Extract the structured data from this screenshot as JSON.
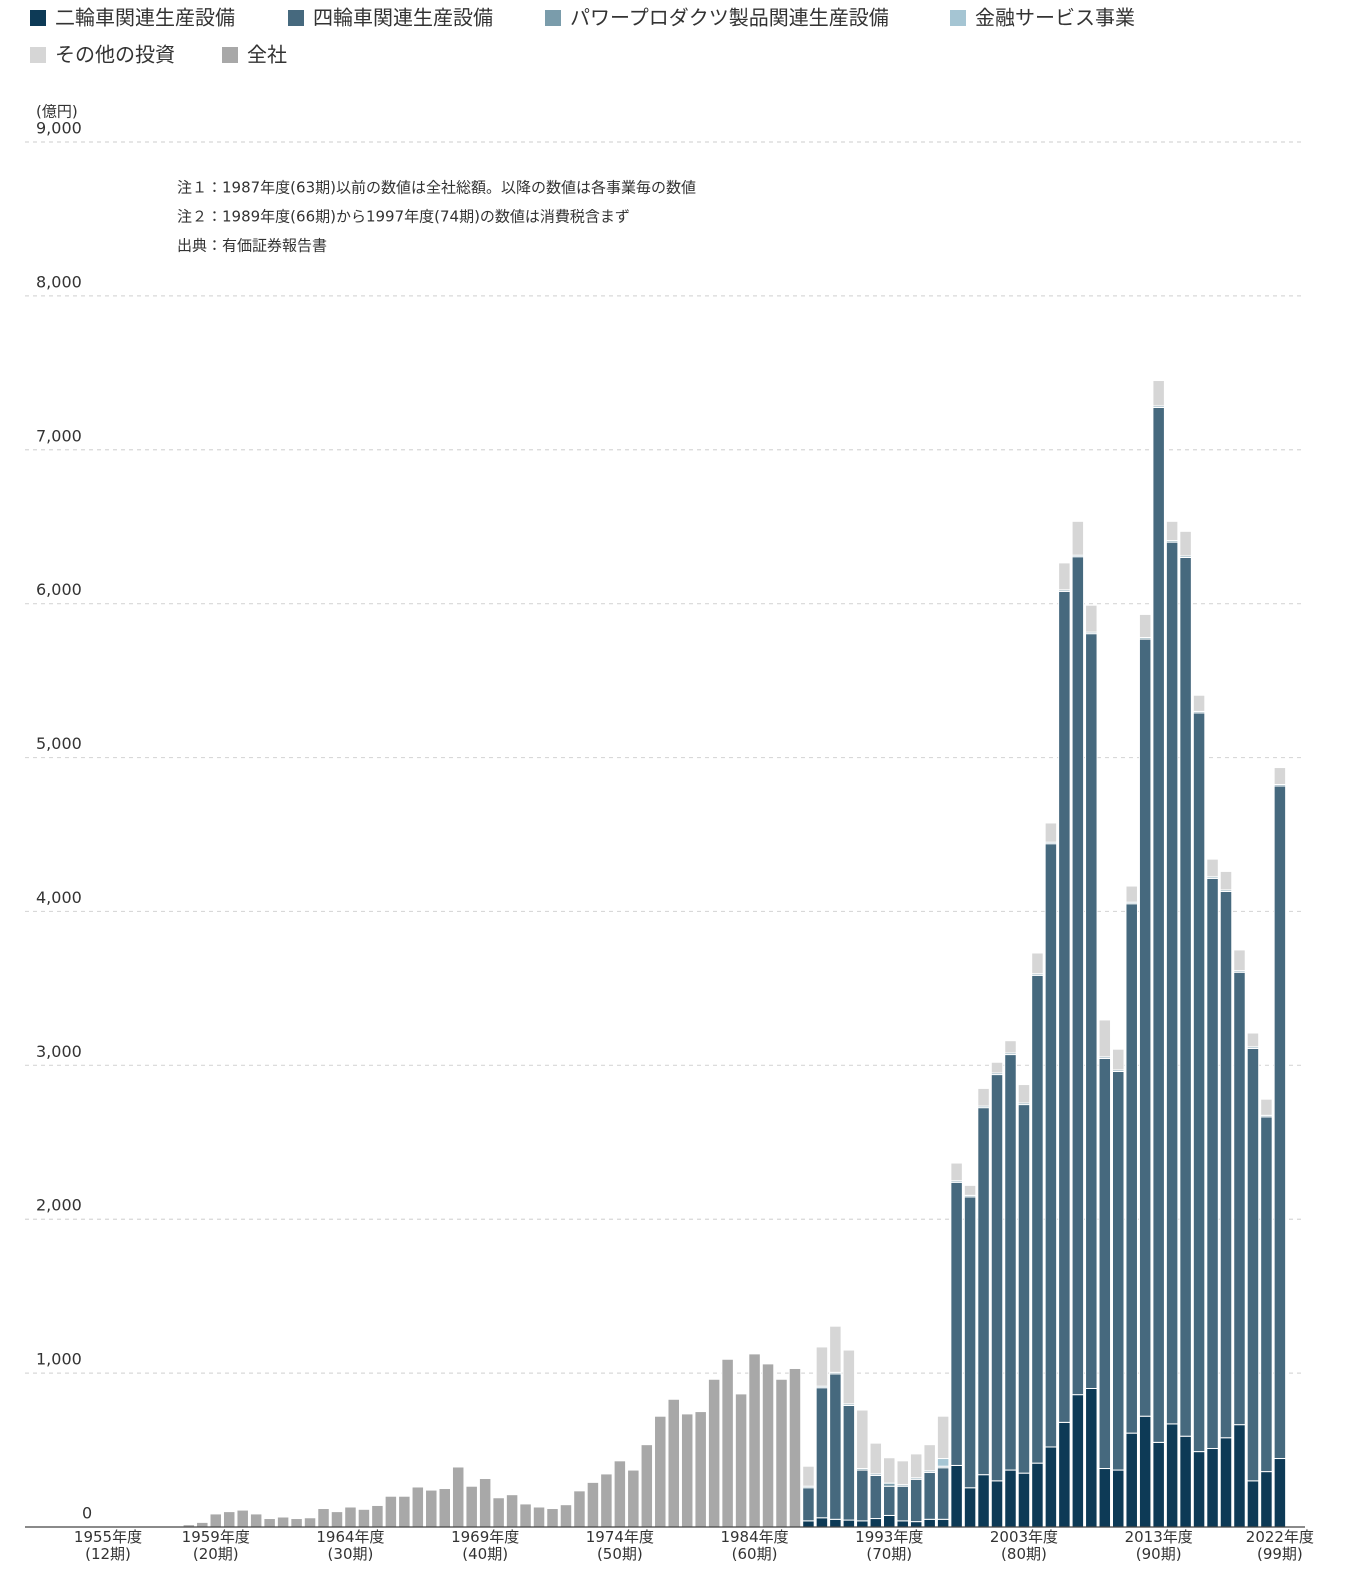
{
  "chart_data": {
    "type": "stacked-bar",
    "y_unit": "(億円)",
    "notes": [
      "注１：1987年度(63期)以前の数値は全社総額。以降の数値は各事業毎の数値",
      "注２：1989年度(66期)から1997年度(74期)の数値は消費税含まず",
      "出典：有価証券報告書"
    ],
    "categories": [
      "1955年度\n(12期)",
      null,
      null,
      null,
      null,
      null,
      null,
      null,
      "1959年度\n(20期)",
      null,
      null,
      null,
      null,
      null,
      null,
      null,
      null,
      null,
      "1964年度\n(30期)",
      null,
      null,
      null,
      null,
      null,
      null,
      null,
      null,
      null,
      "1969年度\n(40期)",
      null,
      null,
      null,
      null,
      null,
      null,
      null,
      null,
      null,
      "1974年度\n(50期)",
      null,
      null,
      null,
      null,
      null,
      null,
      null,
      null,
      null,
      "1984年度\n(60期)",
      null,
      null,
      null,
      null,
      null,
      null,
      null,
      null,
      null,
      "1993年度\n(70期)",
      null,
      null,
      null,
      null,
      null,
      null,
      null,
      null,
      null,
      "2003年度\n(80期)",
      null,
      null,
      null,
      null,
      null,
      null,
      null,
      null,
      null,
      "2013年度\n(90期)",
      null,
      null,
      null,
      null,
      null,
      null,
      null,
      null,
      "2022年度\n(99期)"
    ],
    "ylim": [
      0,
      9000
    ],
    "yticks": [
      0,
      {
        "value": 1000,
        "label": "1,000"
      },
      {
        "value": 2000,
        "label": "2,000"
      },
      {
        "value": 3000,
        "label": "3,000"
      },
      {
        "value": 4000,
        "label": "4,000"
      },
      {
        "value": 5000,
        "label": "5,000"
      },
      {
        "value": 6000,
        "label": "6,000"
      },
      {
        "value": 7000,
        "label": "7,000"
      },
      {
        "value": 8000,
        "label": "8,000"
      },
      {
        "value": 9000,
        "label": "9,000"
      }
    ],
    "grid": true,
    "legend": "top-left",
    "series": [
      {
        "name": "二輪車関連生産設備",
        "color": "#0d3a56",
        "values": [
          null,
          null,
          null,
          null,
          null,
          null,
          null,
          null,
          null,
          null,
          null,
          null,
          null,
          null,
          null,
          null,
          null,
          null,
          null,
          null,
          null,
          null,
          null,
          null,
          null,
          null,
          null,
          null,
          null,
          null,
          null,
          null,
          null,
          null,
          null,
          null,
          null,
          null,
          null,
          null,
          null,
          null,
          null,
          null,
          null,
          null,
          null,
          null,
          null,
          null,
          null,
          null,
          40,
          60,
          50,
          45,
          40,
          55,
          75,
          40,
          35,
          50,
          50,
          400,
          255,
          340,
          300,
          370,
          350,
          415,
          520,
          680,
          860,
          900,
          380,
          370,
          610,
          720,
          550,
          670,
          590,
          490,
          510,
          580,
          665,
          300,
          360,
          445
        ]
      },
      {
        "name": "四輪車関連生産設備",
        "color": "#46697e",
        "values": [
          null,
          null,
          null,
          null,
          null,
          null,
          null,
          null,
          null,
          null,
          null,
          null,
          null,
          null,
          null,
          null,
          null,
          null,
          null,
          null,
          null,
          null,
          null,
          null,
          null,
          null,
          null,
          null,
          null,
          null,
          null,
          null,
          null,
          null,
          null,
          null,
          null,
          null,
          null,
          null,
          null,
          null,
          null,
          null,
          null,
          null,
          null,
          null,
          null,
          null,
          null,
          null,
          215,
          845,
          945,
          745,
          330,
          280,
          190,
          225,
          275,
          305,
          335,
          1840,
          1890,
          2385,
          2640,
          2700,
          2395,
          3170,
          3920,
          5400,
          5445,
          4905,
          2665,
          2590,
          3440,
          5050,
          6725,
          5730,
          5710,
          4800,
          3705,
          3550,
          2940,
          2810,
          2305,
          4370
        ]
      },
      {
        "name": "パワープロダクツ製品関連生産設備",
        "color": "#7a9cab",
        "values": [
          null,
          null,
          null,
          null,
          null,
          null,
          null,
          null,
          null,
          null,
          null,
          null,
          null,
          null,
          null,
          null,
          null,
          null,
          null,
          null,
          null,
          null,
          null,
          null,
          null,
          null,
          null,
          null,
          null,
          null,
          null,
          null,
          null,
          null,
          null,
          null,
          null,
          null,
          null,
          null,
          null,
          null,
          null,
          null,
          null,
          null,
          null,
          null,
          null,
          null,
          null,
          null,
          10,
          10,
          10,
          10,
          10,
          10,
          20,
          10,
          10,
          10,
          10,
          10,
          10,
          10,
          10,
          10,
          10,
          10,
          10,
          10,
          10,
          10,
          10,
          10,
          10,
          10,
          10,
          10,
          10,
          10,
          10,
          10,
          10,
          10,
          10,
          10
        ]
      },
      {
        "name": "金融サービス事業",
        "color": "#a5c5d3",
        "values": [
          null,
          null,
          null,
          null,
          null,
          null,
          null,
          null,
          null,
          null,
          null,
          null,
          null,
          null,
          null,
          null,
          null,
          null,
          null,
          null,
          null,
          null,
          null,
          null,
          null,
          null,
          null,
          null,
          null,
          null,
          null,
          null,
          null,
          null,
          null,
          null,
          null,
          null,
          null,
          null,
          null,
          null,
          null,
          null,
          null,
          null,
          null,
          null,
          null,
          null,
          null,
          null,
          null,
          null,
          null,
          null,
          null,
          null,
          null,
          null,
          null,
          null,
          50,
          null,
          null,
          null,
          null,
          null,
          null,
          null,
          null,
          null,
          null,
          null,
          null,
          null,
          null,
          null,
          null,
          null,
          null,
          null,
          null,
          null,
          null,
          null,
          null,
          null
        ]
      },
      {
        "name": "その他の投資",
        "color": "#d6d6d6",
        "values": [
          null,
          null,
          null,
          null,
          null,
          null,
          null,
          null,
          null,
          null,
          null,
          null,
          null,
          null,
          null,
          null,
          null,
          null,
          null,
          null,
          null,
          null,
          null,
          null,
          null,
          null,
          null,
          null,
          null,
          null,
          null,
          null,
          null,
          null,
          null,
          null,
          null,
          null,
          null,
          null,
          null,
          null,
          null,
          null,
          null,
          null,
          null,
          null,
          null,
          null,
          null,
          null,
          130,
          255,
          300,
          350,
          380,
          200,
          165,
          155,
          155,
          170,
          275,
          115,
          65,
          115,
          70,
          80,
          120,
          135,
          125,
          175,
          220,
          175,
          240,
          135,
          105,
          150,
          165,
          125,
          160,
          105,
          115,
          120,
          135,
          90,
          105,
          110
        ]
      },
      {
        "name": "全社",
        "color": "#a8a8a8",
        "values": [
          null,
          null,
          null,
          null,
          null,
          null,
          15,
          30,
          85,
          100,
          110,
          85,
          55,
          65,
          55,
          60,
          120,
          100,
          130,
          115,
          140,
          200,
          200,
          260,
          240,
          250,
          390,
          265,
          315,
          190,
          210,
          150,
          130,
          120,
          145,
          235,
          290,
          345,
          430,
          370,
          535,
          720,
          830,
          735,
          750,
          960,
          1090,
          865,
          1125,
          1060,
          960,
          1030,
          null,
          null,
          null,
          null,
          null,
          null,
          null,
          null,
          null,
          null,
          null,
          null,
          null,
          null,
          null,
          null,
          null,
          null,
          null,
          null,
          null,
          null,
          null,
          null,
          null,
          null,
          null,
          null,
          null,
          null,
          null,
          null,
          null,
          null,
          null,
          null
        ]
      }
    ]
  }
}
